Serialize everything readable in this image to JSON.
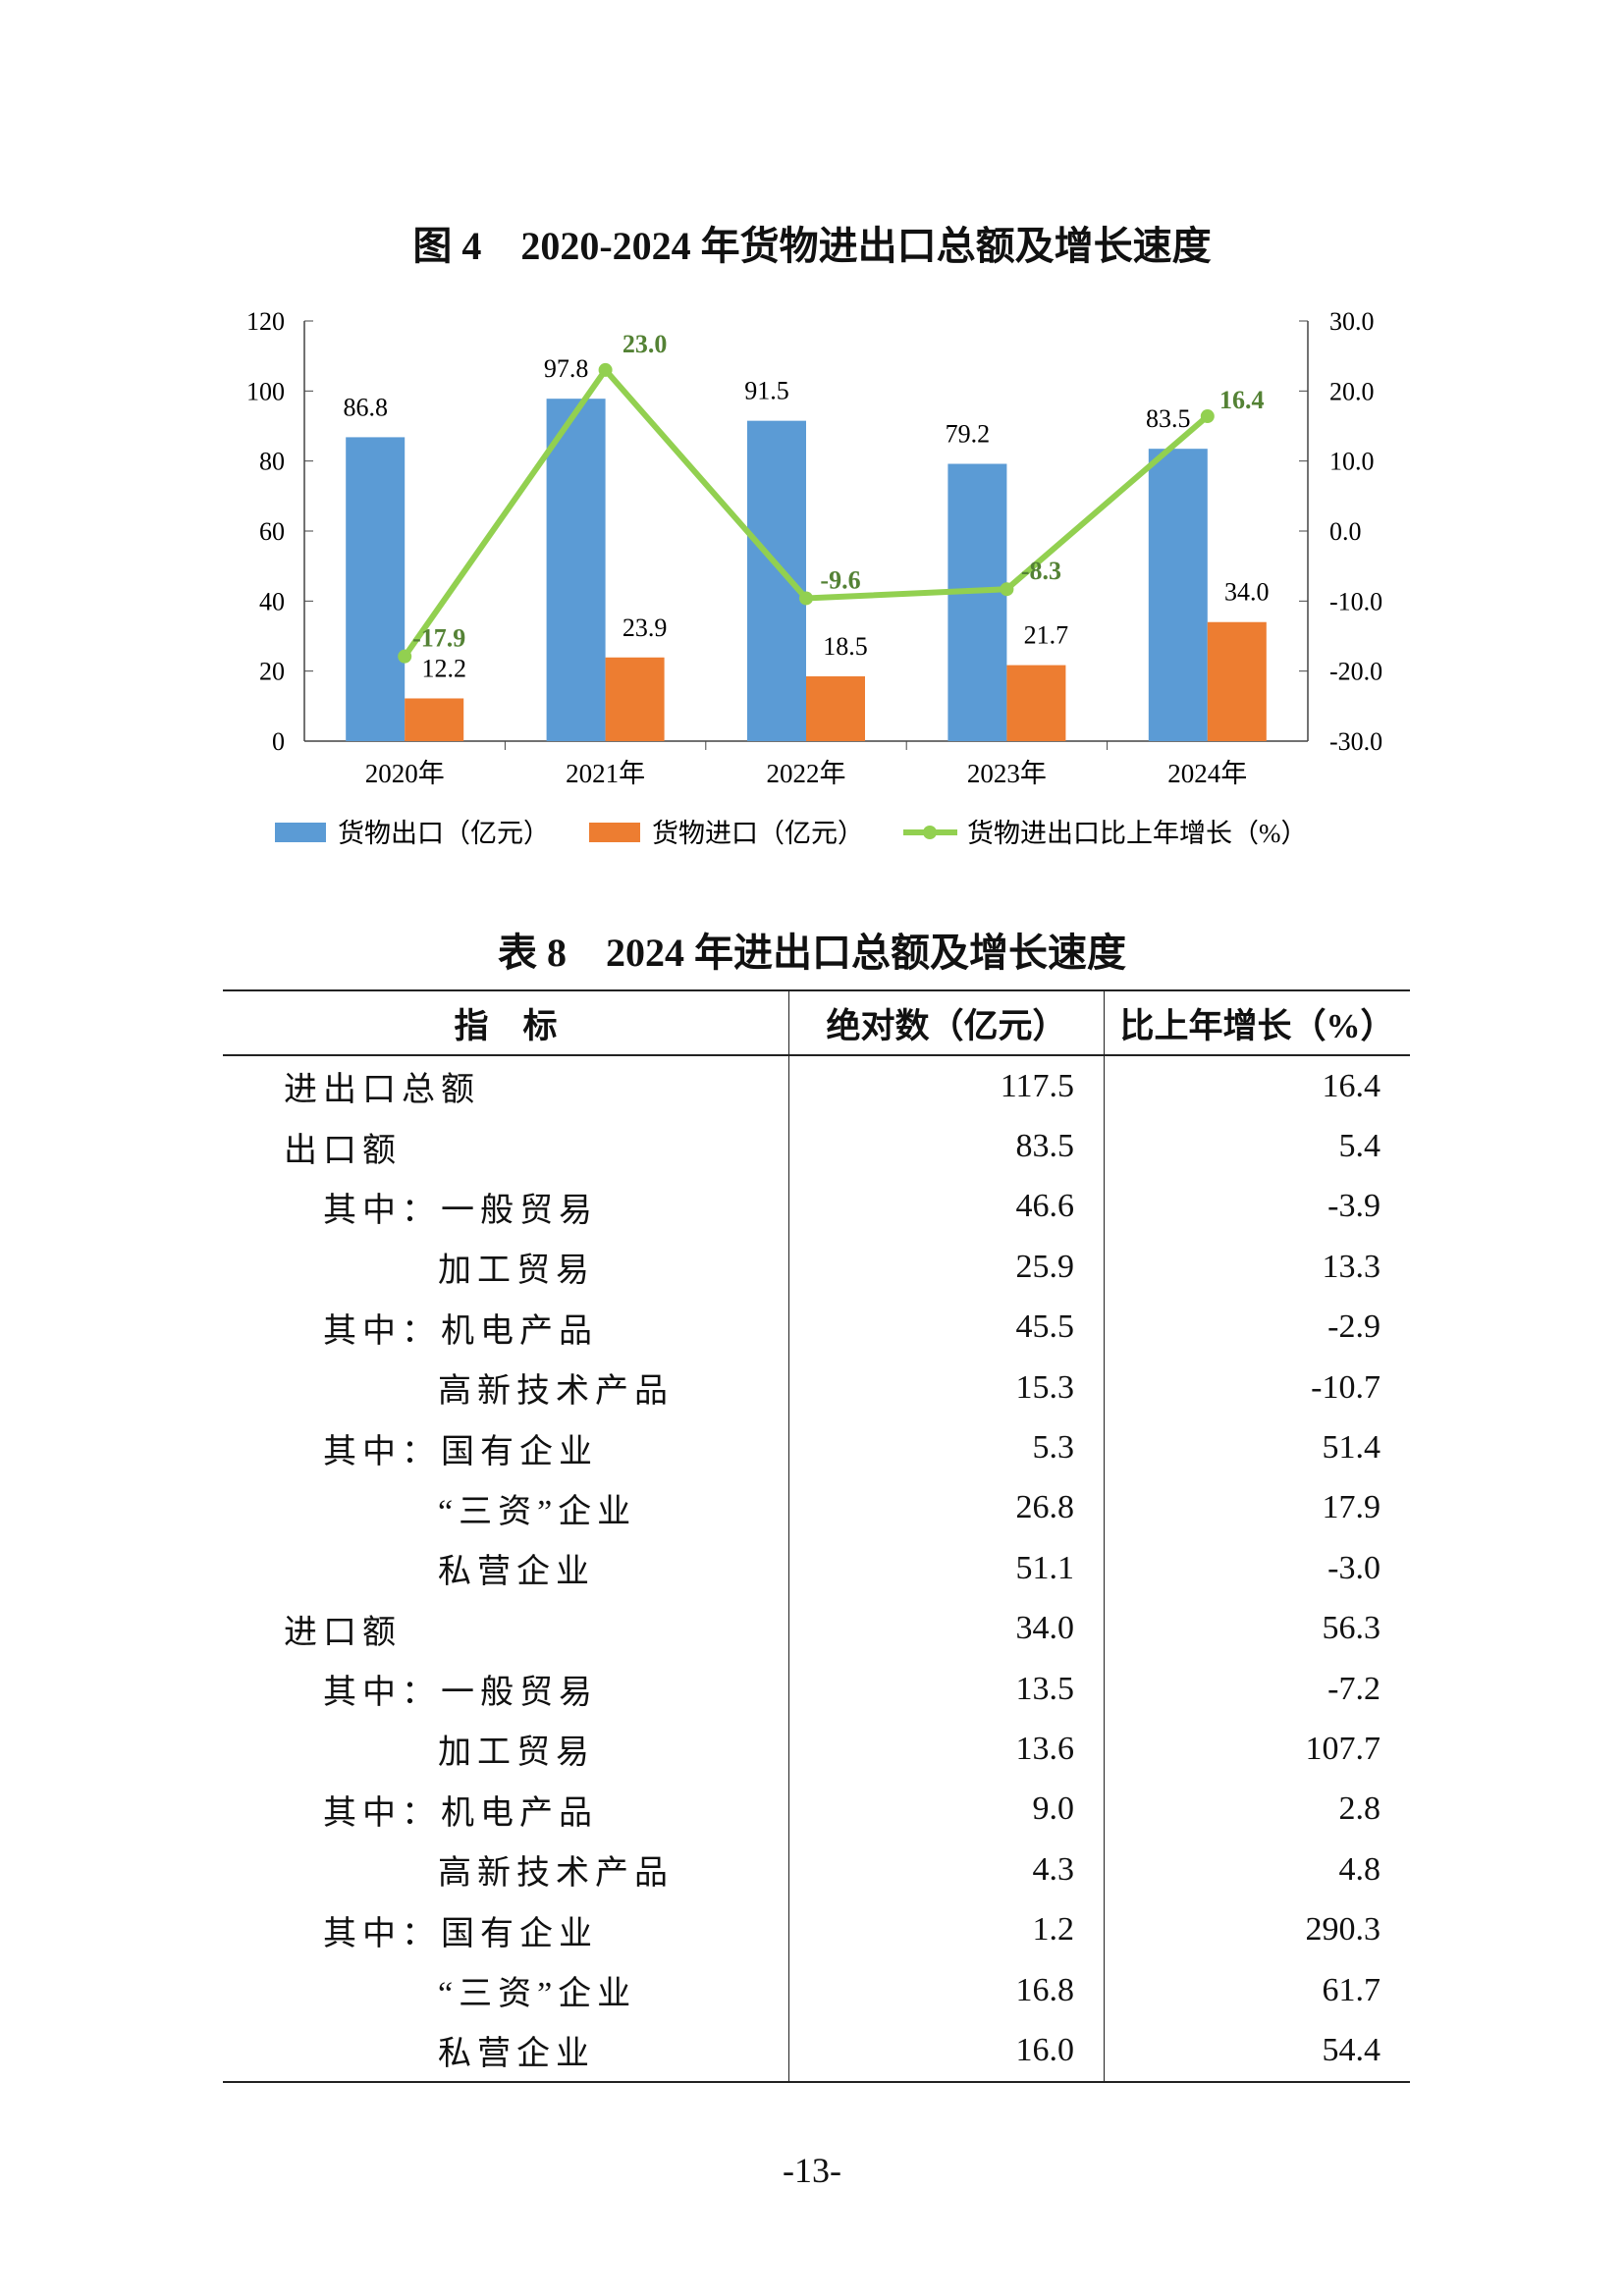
{
  "figure_title": "图 4　2020-2024 年货物进出口总额及增长速度",
  "chart_data": {
    "type": "bar+line",
    "categories": [
      "2020年",
      "2021年",
      "2022年",
      "2023年",
      "2024年"
    ],
    "series": [
      {
        "name": "货物出口（亿元）",
        "type": "bar",
        "axis": "left",
        "color": "#5B9BD5",
        "values": [
          86.8,
          97.8,
          91.5,
          79.2,
          83.5
        ]
      },
      {
        "name": "货物进口（亿元）",
        "type": "bar",
        "axis": "left",
        "color": "#ED7D31",
        "values": [
          12.2,
          23.9,
          18.5,
          21.7,
          34.0
        ]
      },
      {
        "name": "货物进出口比上年增长（%）",
        "type": "line",
        "axis": "right",
        "color": "#92D050",
        "label_color": "#548235",
        "values": [
          -17.9,
          23.0,
          -9.6,
          -8.3,
          16.4
        ]
      }
    ],
    "left_axis": {
      "range": [
        0,
        120
      ],
      "ticks": [
        "0",
        "20",
        "40",
        "60",
        "80",
        "100",
        "120"
      ]
    },
    "right_axis": {
      "range": [
        -30,
        30
      ],
      "ticks": [
        "-30.0",
        "-20.0",
        "-10.0",
        "0.0",
        "10.0",
        "20.0",
        "30.0"
      ]
    },
    "grid": false,
    "legend": "bottom"
  },
  "table_title": "表 8　2024 年进出口总额及增长速度",
  "table": {
    "headers": [
      "指　标",
      "绝对数（亿元）",
      "比上年增长（%）"
    ],
    "rows": [
      {
        "prefix": "",
        "label": "进出口总额",
        "value": "117.5",
        "growth": "16.4",
        "level": 0
      },
      {
        "prefix": "",
        "label": "出口额",
        "value": "83.5",
        "growth": "5.4",
        "level": 0
      },
      {
        "prefix": "其中：",
        "label": "一般贸易",
        "value": "46.6",
        "growth": "-3.9",
        "level": 1
      },
      {
        "prefix": "",
        "label": "加工贸易",
        "value": "25.9",
        "growth": "13.3",
        "level": 2
      },
      {
        "prefix": "其中：",
        "label": "机电产品",
        "value": "45.5",
        "growth": "-2.9",
        "level": 1
      },
      {
        "prefix": "",
        "label": "高新技术产品",
        "value": "15.3",
        "growth": "-10.7",
        "level": 2
      },
      {
        "prefix": "其中：",
        "label": "国有企业",
        "value": "5.3",
        "growth": "51.4",
        "level": 1
      },
      {
        "prefix": "",
        "label": "“三资”企业",
        "value": "26.8",
        "growth": "17.9",
        "level": 2
      },
      {
        "prefix": "",
        "label": "私营企业",
        "value": "51.1",
        "growth": "-3.0",
        "level": 2
      },
      {
        "prefix": "",
        "label": "进口额",
        "value": "34.0",
        "growth": "56.3",
        "level": 0
      },
      {
        "prefix": "其中：",
        "label": "一般贸易",
        "value": "13.5",
        "growth": "-7.2",
        "level": 1
      },
      {
        "prefix": "",
        "label": "加工贸易",
        "value": "13.6",
        "growth": "107.7",
        "level": 2
      },
      {
        "prefix": "其中：",
        "label": "机电产品",
        "value": "9.0",
        "growth": "2.8",
        "level": 1
      },
      {
        "prefix": "",
        "label": "高新技术产品",
        "value": "4.3",
        "growth": "4.8",
        "level": 2
      },
      {
        "prefix": "其中：",
        "label": "国有企业",
        "value": "1.2",
        "growth": "290.3",
        "level": 1
      },
      {
        "prefix": "",
        "label": "“三资”企业",
        "value": "16.8",
        "growth": "61.7",
        "level": 2
      },
      {
        "prefix": "",
        "label": "私营企业",
        "value": "16.0",
        "growth": "54.4",
        "level": 2
      }
    ]
  },
  "page_number": "-13-"
}
